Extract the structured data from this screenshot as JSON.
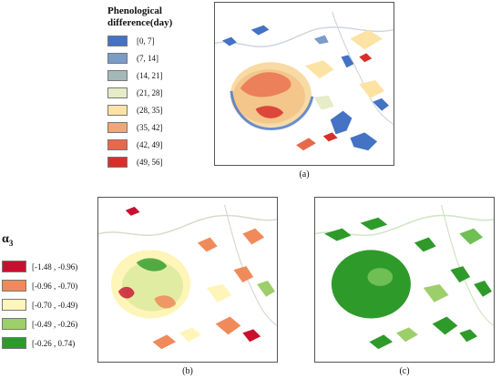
{
  "legend_a": {
    "title": "Phenological difference(day)",
    "items": [
      {
        "label": "[0, 7]",
        "color": "#4472c4"
      },
      {
        "label": "(7, 14]",
        "color": "#7a9cc8"
      },
      {
        "label": "(14, 21]",
        "color": "#a5b8b8"
      },
      {
        "label": "(21, 28]",
        "color": "#e6ebc8"
      },
      {
        "label": "(28, 35]",
        "color": "#fce3a4"
      },
      {
        "label": "(35, 42]",
        "color": "#f4a574"
      },
      {
        "label": "(42, 49]",
        "color": "#e8684a"
      },
      {
        "label": "(49, 56]",
        "color": "#d7302a"
      }
    ]
  },
  "legend_b": {
    "title_main": "α",
    "title_sub": "3",
    "items": [
      {
        "label": "[-1.48 , -0.96)",
        "color": "#c8102e"
      },
      {
        "label": "[-0.96 , -0.70)",
        "color": "#f08a5a"
      },
      {
        "label": "[-0.70 , -0.49)",
        "color": "#fff5b8"
      },
      {
        "label": "[-0.49 , -0.26)",
        "color": "#9ccf6a"
      },
      {
        "label": "[-0.26 , 0.74)",
        "color": "#2e9a2a"
      }
    ]
  },
  "captions": {
    "a": "(a)",
    "b": "(b)",
    "c": "(c)"
  }
}
